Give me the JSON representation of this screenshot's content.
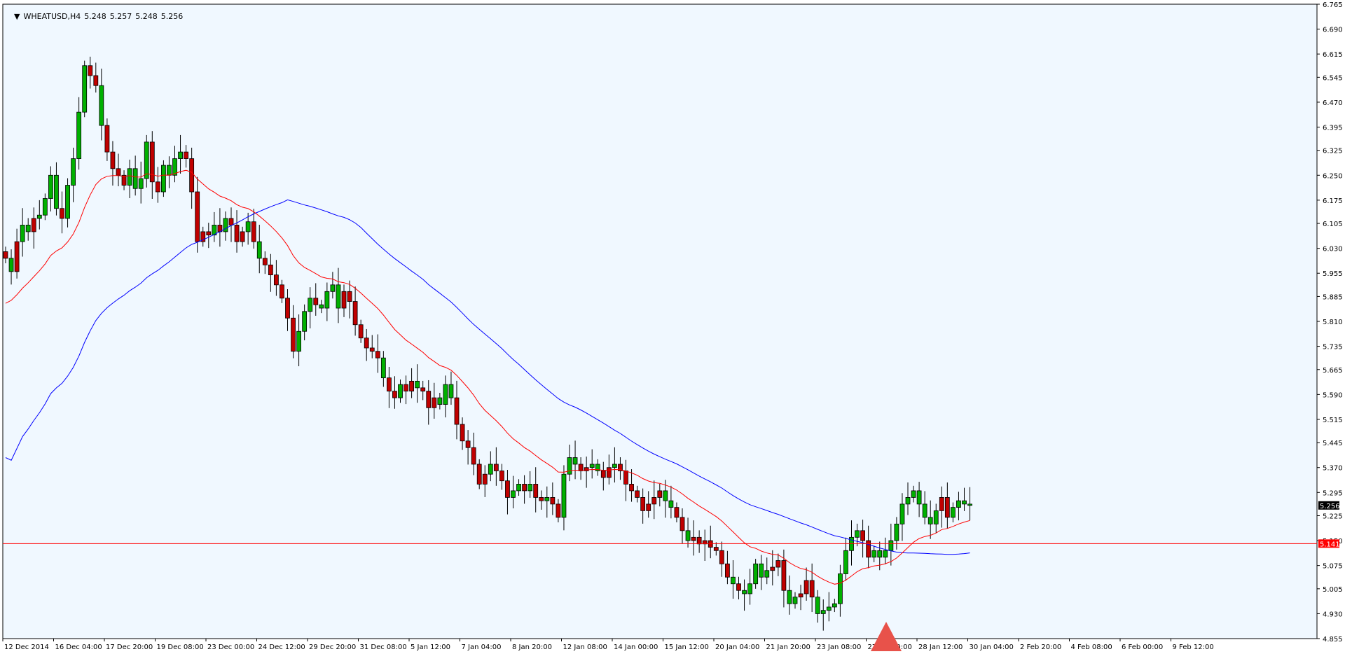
{
  "window": {
    "symbol": "WHEATUSD,H4",
    "ohlc": [
      "5.248",
      "5.257",
      "5.248",
      "5.256"
    ]
  },
  "colors": {
    "background": "#ffffff",
    "plot_background": "#f0f8ff",
    "axis": "#000000",
    "bull_candle": "#00b000",
    "bear_candle": "#c00000",
    "wick": "#000000",
    "ma_fast": "#ff0000",
    "ma_slow": "#0000ff",
    "support_line": "#ff0000",
    "price_tag": "#000000",
    "support_tag": "#ff0000",
    "arrow": "#e8524a"
  },
  "chart_data": {
    "type": "candlestick",
    "timeframe": "H4",
    "ylim": [
      4.855,
      6.765
    ],
    "ytick_labels": [
      "6.765",
      "6.690",
      "6.615",
      "6.545",
      "6.470",
      "6.395",
      "6.325",
      "6.250",
      "6.175",
      "6.105",
      "6.030",
      "5.955",
      "5.885",
      "5.810",
      "5.735",
      "5.665",
      "5.590",
      "5.515",
      "5.445",
      "5.370",
      "5.295",
      "5.225",
      "5.150",
      "5.075",
      "5.005",
      "4.930",
      "4.855"
    ],
    "xtick_labels": [
      "12 Dec 2014",
      "16 Dec 04:00",
      "17 Dec 20:00",
      "19 Dec 08:00",
      "23 Dec 00:00",
      "24 Dec 12:00",
      "29 Dec 20:00",
      "31 Dec 08:00",
      "5 Jan 12:00",
      "7 Jan 04:00",
      "8 Jan 20:00",
      "12 Jan 08:00",
      "14 Jan 00:00",
      "15 Jan 12:00",
      "20 Jan 04:00",
      "21 Jan 20:00",
      "23 Jan 08:00",
      "27 Jan 00:00",
      "28 Jan 12:00",
      "30 Jan 04:00",
      "2 Feb 20:00",
      "4 Feb 08:00",
      "6 Feb 00:00",
      "9 Feb 12:00"
    ],
    "close": [
      6.0,
      5.96,
      6.05,
      6.1,
      6.08,
      6.12,
      6.13,
      6.18,
      6.25,
      6.15,
      6.12,
      6.22,
      6.3,
      6.44,
      6.58,
      6.55,
      6.52,
      6.4,
      6.32,
      6.27,
      6.25,
      6.22,
      6.27,
      6.21,
      6.24,
      6.35,
      6.23,
      6.2,
      6.28,
      6.25,
      6.3,
      6.32,
      6.3,
      6.2,
      6.05,
      6.08,
      6.07,
      6.1,
      6.08,
      6.12,
      6.1,
      6.05,
      6.08,
      6.11,
      6.05,
      6.0,
      5.98,
      5.95,
      5.92,
      5.88,
      5.82,
      5.72,
      5.78,
      5.84,
      5.88,
      5.86,
      5.85,
      5.9,
      5.92,
      5.85,
      5.9,
      5.87,
      5.8,
      5.76,
      5.73,
      5.72,
      5.7,
      5.64,
      5.6,
      5.58,
      5.62,
      5.6,
      5.63,
      5.61,
      5.6,
      5.55,
      5.58,
      5.56,
      5.62,
      5.58,
      5.5,
      5.45,
      5.43,
      5.38,
      5.32,
      5.35,
      5.38,
      5.36,
      5.33,
      5.28,
      5.3,
      5.32,
      5.3,
      5.32,
      5.28,
      5.27,
      5.28,
      5.26,
      5.22,
      5.35,
      5.4,
      5.38,
      5.36,
      5.37,
      5.38,
      5.36,
      5.34,
      5.37,
      5.38,
      5.36,
      5.32,
      5.3,
      5.28,
      5.24,
      5.26,
      5.28,
      5.3,
      5.27,
      5.25,
      5.22,
      5.18,
      5.15,
      5.16,
      5.14,
      5.15,
      5.13,
      5.12,
      5.08,
      5.04,
      5.02,
      5.0,
      4.99,
      5.02,
      5.08,
      5.04,
      5.06,
      5.07,
      5.09,
      5.0,
      4.96,
      4.98,
      4.99,
      5.03,
      4.98,
      4.93,
      4.94,
      4.95,
      4.96,
      5.05,
      5.12,
      5.16,
      5.18,
      5.15,
      5.1,
      5.12,
      5.1,
      5.12,
      5.15,
      5.2,
      5.26,
      5.28,
      5.3,
      5.26,
      5.22,
      5.2,
      5.24,
      5.28,
      5.22,
      5.25,
      5.27,
      5.26,
      5.256
    ],
    "bull_marks": [
      1,
      3,
      4,
      6,
      7,
      8,
      9,
      11,
      12,
      13,
      14,
      17,
      22,
      23,
      24,
      25,
      28,
      29,
      30,
      31,
      37,
      39,
      43,
      45,
      52,
      53,
      54,
      56,
      57,
      58,
      59,
      67,
      70,
      73,
      77,
      78,
      79,
      86,
      90,
      91,
      93,
      96,
      99,
      100,
      101,
      104,
      105,
      108,
      117,
      118,
      121,
      129,
      131,
      132,
      133,
      134,
      135,
      139,
      140,
      144,
      145,
      146,
      147,
      148,
      149,
      150,
      151,
      154,
      155,
      156,
      157,
      158,
      159,
      160,
      161,
      162,
      163,
      164,
      165,
      168,
      169,
      170,
      171,
      172
    ],
    "ma_fast_label": "",
    "ma_slow_label": "",
    "support_level": 5.141,
    "last_price": "5.256",
    "support_label": "5.141"
  }
}
